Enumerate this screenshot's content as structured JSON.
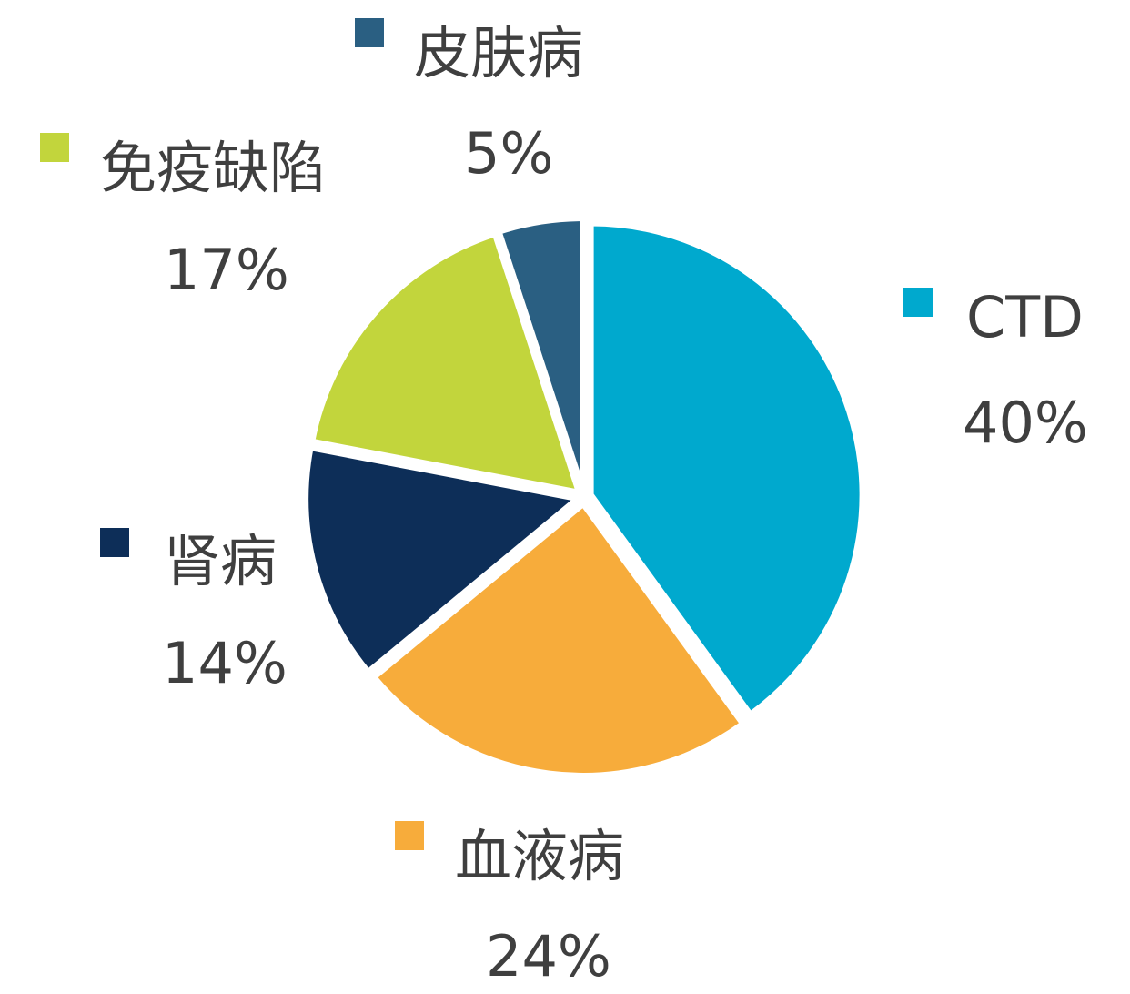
{
  "chart_data": {
    "type": "pie",
    "categories": [
      "CTD",
      "血液病",
      "肾病",
      "免疫缺陷",
      "皮肤病"
    ],
    "values": [
      40,
      24,
      14,
      17,
      5
    ],
    "labels": [
      "40%",
      "24%",
      "14%",
      "17%",
      "5%"
    ],
    "colors": [
      "#00a9ce",
      "#f7ac3b",
      "#0d2e58",
      "#c2d53c",
      "#2a5f82"
    ],
    "start": "12 o'clock",
    "direction": "clockwise",
    "exploded": true,
    "legend": "labels beside slices",
    "title": ""
  }
}
